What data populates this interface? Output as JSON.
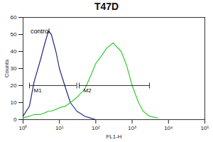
{
  "chart_data": {
    "type": "line",
    "title": "T47D",
    "x_label": "FL1-H",
    "y_label": "Counts",
    "log": "x",
    "x": [
      1,
      1.5,
      2,
      3,
      4,
      5,
      6,
      8,
      10,
      15,
      20,
      30,
      50,
      70,
      100,
      150,
      200,
      300,
      500,
      700,
      1000,
      1500,
      2000,
      3000,
      5000
    ],
    "series": [
      {
        "color": "#1f2a80",
        "values": [
          2,
          8,
          22,
          35,
          45,
          52,
          50,
          40,
          30,
          18,
          10,
          5,
          2,
          1,
          0,
          0,
          0,
          0,
          0,
          0,
          0,
          0,
          0,
          0,
          0
        ]
      },
      {
        "color": "#33cc33",
        "values": [
          1,
          2,
          3,
          3,
          4,
          5,
          5,
          6,
          7,
          8,
          10,
          13,
          18,
          25,
          33,
          38,
          42,
          45,
          40,
          32,
          20,
          10,
          5,
          2,
          1
        ]
      }
    ],
    "annotations": [
      {
        "text": "control",
        "x": 1.6,
        "y": 52
      }
    ],
    "gates": [
      {
        "label": "M1",
        "x": [
          1.5,
          30
        ],
        "y": 20
      },
      {
        "label": "M2",
        "x": [
          35,
          3000
        ],
        "y": 20
      }
    ],
    "xlim": [
      1,
      100000
    ],
    "xticks": [
      {
        "value": 1,
        "label": "10⁰"
      },
      {
        "value": 10,
        "label": "10¹"
      },
      {
        "value": 100,
        "label": "10²"
      },
      {
        "value": 1000,
        "label": "10³"
      },
      {
        "value": 10000,
        "label": "10⁴"
      },
      {
        "value": 100000,
        "label": "10⁵"
      }
    ],
    "ylim": [
      0,
      60
    ],
    "yticks": [
      0,
      10,
      20,
      30,
      40,
      50,
      60
    ],
    "grid": false
  }
}
